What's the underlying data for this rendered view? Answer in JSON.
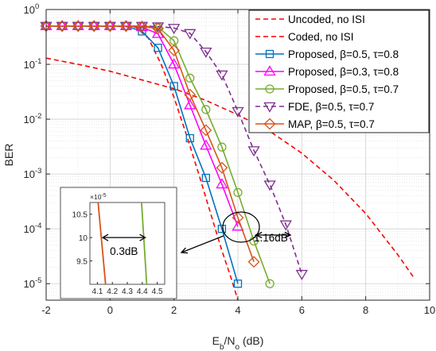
{
  "chart_data": [
    {
      "type": "line",
      "xlabel": "E_b/N_o (dB)",
      "ylabel": "BER",
      "xlim": [
        -2,
        10
      ],
      "ylim": [
        5e-06,
        1
      ],
      "yscale": "log",
      "grid": true,
      "legend_position": "top-right",
      "xticks": [
        "-2",
        "0",
        "2",
        "4",
        "6",
        "8",
        "10"
      ],
      "yticks": [
        {
          "value": 1,
          "mant": "10",
          "exp": "0"
        },
        {
          "value": 0.1,
          "mant": "10",
          "exp": "-1"
        },
        {
          "value": 0.01,
          "mant": "10",
          "exp": "-2"
        },
        {
          "value": 0.001,
          "mant": "10",
          "exp": "-3"
        },
        {
          "value": 0.0001,
          "mant": "10",
          "exp": "-4"
        },
        {
          "value": 1e-05,
          "mant": "10",
          "exp": "-5"
        }
      ],
      "series": [
        {
          "name": "Uncoded, no ISI",
          "color": "#ff0000",
          "dash": "dashed",
          "marker": "none",
          "x": [
            -2,
            -1,
            0,
            1,
            2,
            3,
            4,
            5,
            6,
            7,
            8,
            9,
            9.5
          ],
          "y": [
            0.13,
            0.1,
            0.075,
            0.052,
            0.036,
            0.022,
            0.012,
            0.006,
            0.0024,
            0.00077,
            0.00019,
            3.4e-05,
            1.3e-05
          ]
        },
        {
          "name": "Coded, no ISI",
          "color": "#ff0000",
          "dash": "dashed",
          "marker": "none",
          "x": [
            -2,
            0,
            0.8,
            1.2,
            1.6,
            2,
            2.4,
            2.8,
            3.2,
            3.5,
            3.8,
            4.0
          ],
          "y": [
            0.5,
            0.5,
            0.48,
            0.3,
            0.1,
            0.025,
            0.005,
            0.0009,
            0.00015,
            4e-05,
            1.2e-05,
            5e-06
          ]
        },
        {
          "name": "Proposed, β=0.5, τ=0.8",
          "color": "#0072bd",
          "dash": "solid",
          "marker": "square",
          "x": [
            -2,
            -1.5,
            -1,
            -0.5,
            0,
            0.5,
            1,
            1.5,
            2,
            2.5,
            3,
            3.5,
            4
          ],
          "y": [
            0.5,
            0.5,
            0.5,
            0.5,
            0.5,
            0.5,
            0.4,
            0.2,
            0.04,
            0.0045,
            0.00085,
            0.0001,
            1e-05
          ]
        },
        {
          "name": "Proposed, β=0.3, τ=0.8",
          "color": "#ff00ff",
          "dash": "solid",
          "marker": "triangle-up",
          "x": [
            -2,
            -1.5,
            -1,
            -0.5,
            0,
            0.5,
            1,
            1.5,
            2,
            2.5,
            3,
            3.5,
            4
          ],
          "y": [
            0.5,
            0.5,
            0.5,
            0.5,
            0.5,
            0.5,
            0.48,
            0.36,
            0.1,
            0.018,
            0.0033,
            0.00065,
            0.00011
          ]
        },
        {
          "name": "Proposed, β=0.5, τ=0.7",
          "color": "#77ac30",
          "dash": "solid",
          "marker": "circle",
          "x": [
            -2,
            -1.5,
            -1,
            -0.5,
            0,
            0.5,
            1,
            1.5,
            2,
            2.5,
            3,
            3.5,
            4,
            4.5,
            5
          ],
          "y": [
            0.5,
            0.5,
            0.5,
            0.5,
            0.5,
            0.5,
            0.5,
            0.48,
            0.27,
            0.056,
            0.015,
            0.0031,
            0.00046,
            6e-05,
            1e-05
          ]
        },
        {
          "name": "FDE, β=0.5, τ=0.7",
          "color": "#7e2f8e",
          "dash": "dashed",
          "marker": "triangle-down",
          "x": [
            -2,
            -1.5,
            -1,
            -0.5,
            0,
            0.5,
            1,
            1.5,
            2,
            2.5,
            3,
            3.5,
            4,
            4.5,
            5,
            5.5,
            6
          ],
          "y": [
            0.5,
            0.5,
            0.5,
            0.5,
            0.5,
            0.5,
            0.5,
            0.49,
            0.46,
            0.37,
            0.17,
            0.065,
            0.014,
            0.0027,
            0.00064,
            0.00012,
            1.5e-05
          ]
        },
        {
          "name": "MAP, β=0.5, τ=0.7",
          "color": "#d95319",
          "dash": "solid",
          "marker": "diamond",
          "x": [
            -2,
            -1.5,
            -1,
            -0.5,
            0,
            0.5,
            1,
            1.5,
            2,
            2.5,
            3,
            3.5,
            4,
            4.5
          ],
          "y": [
            0.5,
            0.5,
            0.5,
            0.5,
            0.5,
            0.5,
            0.49,
            0.45,
            0.18,
            0.028,
            0.0063,
            0.0013,
            0.00016,
            2.5e-05
          ]
        }
      ],
      "annotations": [
        {
          "text": "1.16dB"
        },
        {
          "text": "0.3dB"
        }
      ]
    },
    {
      "type": "line",
      "role": "inset",
      "xlim": [
        4.05,
        4.55
      ],
      "ylim": [
        9.0,
        10.75
      ],
      "y_exponent_label": {
        "mant": "×10",
        "exp": "-5"
      },
      "xticks": [
        "4.1",
        "4.2",
        "4.3",
        "4.4",
        "4.5"
      ],
      "yticks": [
        "9.5",
        "10",
        "10.5"
      ],
      "series": [
        {
          "name": "MAP, β=0.5, τ=0.7",
          "color": "#d95319",
          "x": [
            4.105,
            4.155
          ],
          "y": [
            10.75,
            9.0
          ]
        },
        {
          "name": "Proposed, β=0.5, τ=0.7",
          "color": "#77ac30",
          "x": [
            4.395,
            4.43
          ],
          "y": [
            10.75,
            9.0
          ]
        }
      ]
    }
  ]
}
